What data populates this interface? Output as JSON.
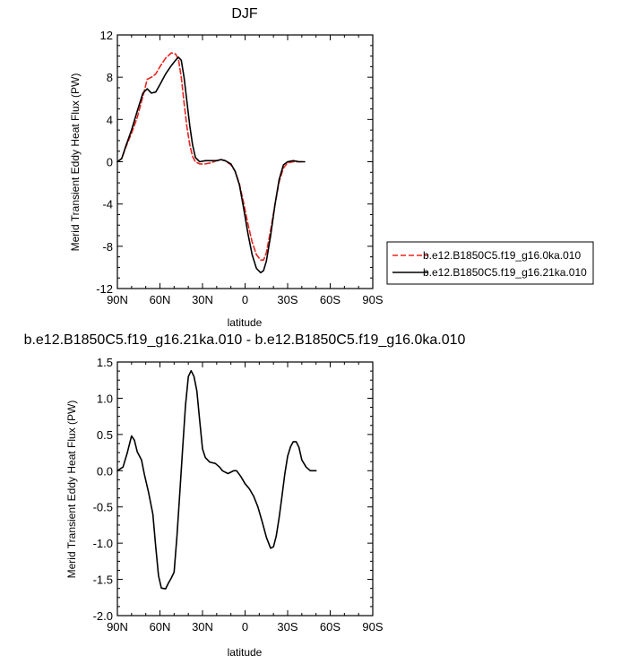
{
  "chart_data": [
    {
      "type": "line",
      "title": "DJF",
      "xlabel": "latitude",
      "ylabel": "Merid Transient Eddy Heat Flux (PW)",
      "x_ticks": [
        "90N",
        "60N",
        "30N",
        "0",
        "30S",
        "60S",
        "90S"
      ],
      "x_tick_values": [
        90,
        60,
        30,
        0,
        -30,
        -60,
        -90
      ],
      "xlim": [
        90,
        -90
      ],
      "ylim": [
        -12,
        12
      ],
      "y_ticks": [
        "12",
        "8",
        "4",
        "0",
        "-4",
        "-8",
        "-12"
      ],
      "y_tick_values": [
        12,
        8,
        4,
        0,
        -4,
        -8,
        -12
      ],
      "legend_position": "right",
      "series": [
        {
          "name": "b.e12.B1850C5.f19_g16.0ka.010",
          "color": "#e8241f",
          "dash": "dashed",
          "points": [
            [
              90,
              0
            ],
            [
              87,
              0.3
            ],
            [
              84,
              1.4
            ],
            [
              80,
              2.7
            ],
            [
              76,
              4.2
            ],
            [
              72,
              6.2
            ],
            [
              69,
              7.8
            ],
            [
              66,
              8.0
            ],
            [
              63,
              8.3
            ],
            [
              60,
              9.0
            ],
            [
              56,
              9.8
            ],
            [
              52,
              10.3
            ],
            [
              49,
              10.2
            ],
            [
              47,
              9.7
            ],
            [
              45,
              8.0
            ],
            [
              43,
              5.6
            ],
            [
              41,
              3.3
            ],
            [
              39,
              1.6
            ],
            [
              37,
              0.5
            ],
            [
              35,
              0
            ],
            [
              32,
              -0.2
            ],
            [
              28,
              -0.2
            ],
            [
              24,
              -0.1
            ],
            [
              20,
              0.1
            ],
            [
              17,
              0.2
            ],
            [
              14,
              0.1
            ],
            [
              10,
              -0.3
            ],
            [
              7,
              -0.9
            ],
            [
              4,
              -2.1
            ],
            [
              1,
              -3.9
            ],
            [
              -2,
              -5.9
            ],
            [
              -5,
              -7.6
            ],
            [
              -8,
              -8.8
            ],
            [
              -11,
              -9.3
            ],
            [
              -13,
              -9.3
            ],
            [
              -15,
              -8.6
            ],
            [
              -18,
              -6.5
            ],
            [
              -21,
              -4.1
            ],
            [
              -24,
              -1.9
            ],
            [
              -27,
              -0.6
            ],
            [
              -30,
              -0.1
            ],
            [
              -34,
              0
            ],
            [
              -38,
              0
            ],
            [
              -42,
              0
            ]
          ]
        },
        {
          "name": "b.e12.B1850C5.f19_g16.21ka.010",
          "color": "#000000",
          "dash": "solid",
          "points": [
            [
              90,
              0
            ],
            [
              87,
              0.3
            ],
            [
              84,
              1.5
            ],
            [
              80,
              3.0
            ],
            [
              76,
              4.8
            ],
            [
              72,
              6.5
            ],
            [
              69,
              6.9
            ],
            [
              66,
              6.5
            ],
            [
              63,
              6.6
            ],
            [
              60,
              7.3
            ],
            [
              56,
              8.3
            ],
            [
              52,
              9.1
            ],
            [
              49,
              9.6
            ],
            [
              47,
              9.9
            ],
            [
              45,
              9.6
            ],
            [
              43,
              8.0
            ],
            [
              41,
              5.7
            ],
            [
              39,
              3.4
            ],
            [
              37,
              1.6
            ],
            [
              35,
              0.4
            ],
            [
              32,
              0
            ],
            [
              28,
              0.1
            ],
            [
              24,
              0.1
            ],
            [
              20,
              0.1
            ],
            [
              17,
              0.2
            ],
            [
              14,
              0.1
            ],
            [
              10,
              -0.2
            ],
            [
              7,
              -0.9
            ],
            [
              4,
              -2.2
            ],
            [
              1,
              -4.4
            ],
            [
              -2,
              -6.8
            ],
            [
              -5,
              -8.8
            ],
            [
              -8,
              -10.1
            ],
            [
              -11,
              -10.5
            ],
            [
              -13,
              -10.3
            ],
            [
              -15,
              -9.4
            ],
            [
              -18,
              -7.0
            ],
            [
              -21,
              -4.1
            ],
            [
              -24,
              -1.7
            ],
            [
              -27,
              -0.3
            ],
            [
              -30,
              0
            ],
            [
              -34,
              0.1
            ],
            [
              -38,
              0
            ],
            [
              -42,
              0
            ]
          ]
        }
      ]
    },
    {
      "type": "line",
      "title": "b.e12.B1850C5.f19_g16.21ka.010 - b.e12.B1850C5.f19_g16.0ka.010",
      "xlabel": "latitude",
      "ylabel": "Merid Transient Eddy Heat Flux (PW)",
      "x_ticks": [
        "90N",
        "60N",
        "30N",
        "0",
        "30S",
        "60S",
        "90S"
      ],
      "x_tick_values": [
        90,
        60,
        30,
        0,
        -30,
        -60,
        -90
      ],
      "xlim": [
        90,
        -90
      ],
      "ylim": [
        -2.0,
        1.5
      ],
      "y_ticks": [
        "1.5",
        "1.0",
        "0.5",
        "0.0",
        "-0.5",
        "-1.0",
        "-1.5",
        "-2.0"
      ],
      "y_tick_values": [
        1.5,
        1.0,
        0.5,
        0.0,
        -0.5,
        -1.0,
        -1.5,
        -2.0
      ],
      "series": [
        {
          "color": "#000000",
          "dash": "solid",
          "points": [
            [
              90,
              0
            ],
            [
              86,
              0.05
            ],
            [
              83,
              0.25
            ],
            [
              80,
              0.48
            ],
            [
              78,
              0.42
            ],
            [
              76,
              0.26
            ],
            [
              73,
              0.15
            ],
            [
              71,
              -0.05
            ],
            [
              68,
              -0.3
            ],
            [
              65,
              -0.6
            ],
            [
              63,
              -1.05
            ],
            [
              61,
              -1.45
            ],
            [
              59,
              -1.62
            ],
            [
              56,
              -1.63
            ],
            [
              54,
              -1.55
            ],
            [
              52,
              -1.48
            ],
            [
              50,
              -1.4
            ],
            [
              48,
              -0.9
            ],
            [
              46,
              -0.3
            ],
            [
              44,
              0.3
            ],
            [
              42,
              0.9
            ],
            [
              40,
              1.3
            ],
            [
              38,
              1.38
            ],
            [
              36,
              1.3
            ],
            [
              34,
              1.1
            ],
            [
              32,
              0.7
            ],
            [
              30,
              0.3
            ],
            [
              28,
              0.18
            ],
            [
              25,
              0.12
            ],
            [
              21,
              0.1
            ],
            [
              18,
              0.05
            ],
            [
              16,
              0
            ],
            [
              14,
              -0.02
            ],
            [
              12,
              -0.04
            ],
            [
              10,
              -0.02
            ],
            [
              8,
              0.0
            ],
            [
              6,
              0
            ],
            [
              3,
              -0.08
            ],
            [
              0,
              -0.18
            ],
            [
              -3,
              -0.25
            ],
            [
              -6,
              -0.35
            ],
            [
              -9,
              -0.5
            ],
            [
              -12,
              -0.7
            ],
            [
              -15,
              -0.92
            ],
            [
              -18,
              -1.07
            ],
            [
              -20,
              -1.05
            ],
            [
              -22,
              -0.9
            ],
            [
              -24,
              -0.65
            ],
            [
              -26,
              -0.35
            ],
            [
              -28,
              -0.05
            ],
            [
              -30,
              0.2
            ],
            [
              -32,
              0.33
            ],
            [
              -34,
              0.4
            ],
            [
              -36,
              0.4
            ],
            [
              -38,
              0.32
            ],
            [
              -40,
              0.15
            ],
            [
              -43,
              0.05
            ],
            [
              -46,
              0.0
            ],
            [
              -50,
              0.0
            ]
          ]
        }
      ]
    }
  ]
}
